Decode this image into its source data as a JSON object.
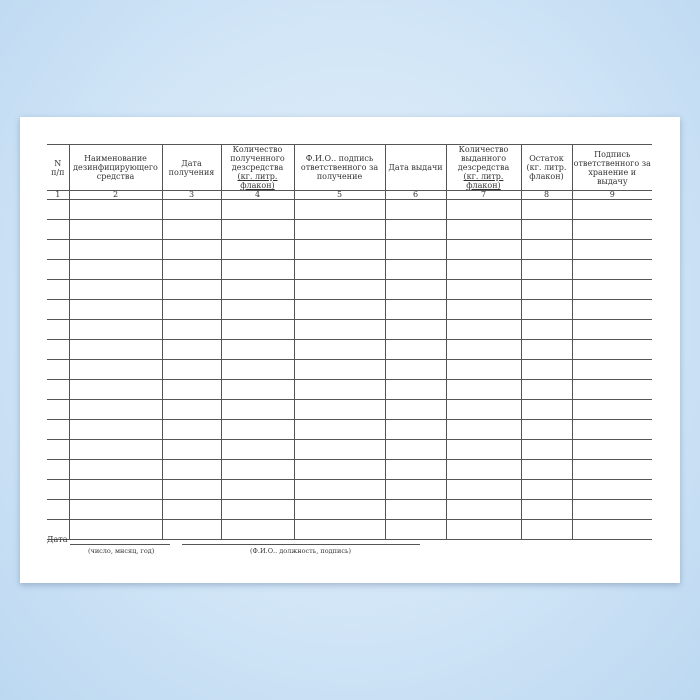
{
  "table": {
    "headers": [
      {
        "lines": [
          "N",
          "п/п"
        ]
      },
      {
        "lines": [
          "Наименование",
          "дезинфицирующего",
          "средства"
        ]
      },
      {
        "lines": [
          "Дата",
          "получения"
        ]
      },
      {
        "lines": [
          "Количество",
          "полученного",
          "дезсредства",
          "(кг. литр. флакон)"
        ]
      },
      {
        "lines": [
          "Ф.И.О.. подпись",
          "ответственного за",
          "получение"
        ]
      },
      {
        "lines": [
          "Дата выдачи"
        ]
      },
      {
        "lines": [
          "Количество",
          "выданного",
          "дезсредства",
          "(кг. литр. флакон)"
        ]
      },
      {
        "lines": [
          "Остаток",
          "(кг. литр.",
          "флакон)"
        ]
      },
      {
        "lines": [
          "Подпись",
          "ответственного за",
          "хранение и выдачу"
        ]
      }
    ],
    "column_numbers": [
      "1",
      "2",
      "3",
      "4",
      "5",
      "6",
      "7",
      "8",
      "9"
    ],
    "empty_rows": 17
  },
  "footer": {
    "date_label": "Дата",
    "date_hint": "(число, мнсяц, год)",
    "signature_hint": "(Ф.И.О.. должность, подпись)"
  }
}
